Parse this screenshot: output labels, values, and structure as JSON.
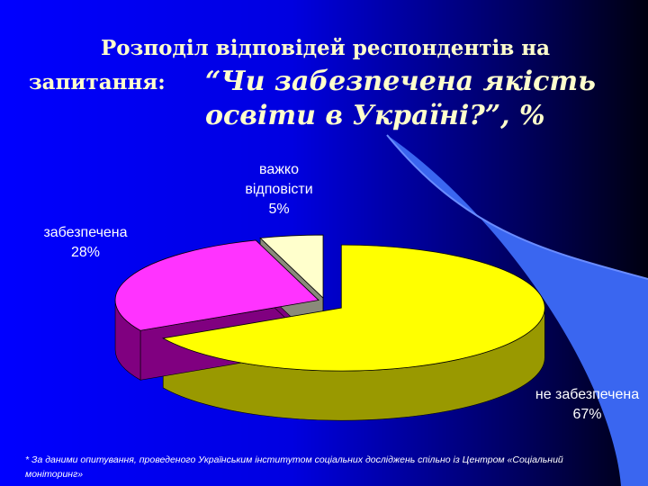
{
  "chart_data": {
    "type": "pie",
    "title_line1": "Розподіл відповідей респондентів на",
    "title_lead": "запитання:",
    "title_question": "“Чи забезпечена якість освіти в Україні?”, %",
    "categories": [
      "не забезпечена",
      "забезпечена",
      "важко відповісти"
    ],
    "values": [
      67,
      28,
      5
    ],
    "value_labels": [
      "67%",
      "28%",
      "5%"
    ],
    "colors": [
      "#ffff00",
      "#ff33ff",
      "#ffffcc"
    ],
    "side_colors": [
      "#999900",
      "#800080",
      "#8a8a7a"
    ],
    "footnote": "* За даними опитування, проведеного Українським інститутом соціальних досліджень спільно із Центром «Соціальний моніторинг»"
  }
}
